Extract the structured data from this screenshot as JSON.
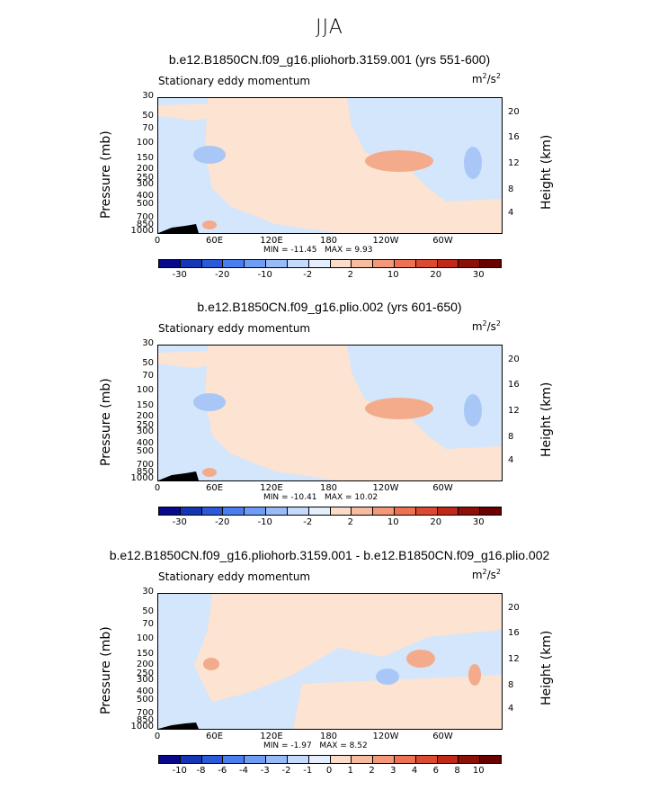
{
  "main_title": "JJA",
  "chart_data": [
    {
      "type": "heatmap",
      "title": "b.e12.B1850CN.f09_g16.pliohorb.3159.001 (yrs 551-600)",
      "variable_label": "Stationary eddy momentum",
      "units_base": "m",
      "units_exp1": "2",
      "units_mid": "/s",
      "units_exp2": "2",
      "ylabel": "Pressure (mb)",
      "ylabel_right": "Height (km)",
      "pressure_ticks": [
        "30",
        "50",
        "70",
        "100",
        "150",
        "200",
        "250",
        "300",
        "400",
        "500",
        "700",
        "850",
        "1000"
      ],
      "height_ticks": [
        "20",
        "16",
        "12",
        "8",
        "4"
      ],
      "x_ticks": [
        "0",
        "60E",
        "120E",
        "180",
        "120W",
        "60W"
      ],
      "min_label": "MIN = ",
      "min_value": "-11.45",
      "max_label": "MAX = ",
      "max_value": "9.93",
      "colorbar_ticks": [
        "-30",
        "-20",
        "-10",
        "-2",
        "2",
        "10",
        "20",
        "30"
      ]
    },
    {
      "type": "heatmap",
      "title": "b.e12.B1850CN.f09_g16.plio.002 (yrs 601-650)",
      "variable_label": "Stationary eddy momentum",
      "units_base": "m",
      "units_exp1": "2",
      "units_mid": "/s",
      "units_exp2": "2",
      "ylabel": "Pressure (mb)",
      "ylabel_right": "Height (km)",
      "pressure_ticks": [
        "30",
        "50",
        "70",
        "100",
        "150",
        "200",
        "250",
        "300",
        "400",
        "500",
        "700",
        "850",
        "1000"
      ],
      "height_ticks": [
        "20",
        "16",
        "12",
        "8",
        "4"
      ],
      "x_ticks": [
        "0",
        "60E",
        "120E",
        "180",
        "120W",
        "60W"
      ],
      "min_label": "MIN = ",
      "min_value": "-10.41",
      "max_label": "MAX = ",
      "max_value": "10.02",
      "colorbar_ticks": [
        "-30",
        "-20",
        "-10",
        "-2",
        "2",
        "10",
        "20",
        "30"
      ]
    },
    {
      "type": "heatmap",
      "title": "b.e12.B1850CN.f09_g16.pliohorb.3159.001 - b.e12.B1850CN.f09_g16.plio.002",
      "variable_label": "Stationary eddy momentum",
      "units_base": "m",
      "units_exp1": "2",
      "units_mid": "/s",
      "units_exp2": "2",
      "ylabel": "Pressure (mb)",
      "ylabel_right": "Height (km)",
      "pressure_ticks": [
        "30",
        "50",
        "70",
        "100",
        "150",
        "200",
        "250",
        "300",
        "400",
        "500",
        "700",
        "850",
        "1000"
      ],
      "height_ticks": [
        "20",
        "16",
        "12",
        "8",
        "4"
      ],
      "x_ticks": [
        "0",
        "60E",
        "120E",
        "180",
        "120W",
        "60W"
      ],
      "min_label": "MIN = ",
      "min_value": "-1.97",
      "max_label": "MAX = ",
      "max_value": "8.52",
      "colorbar_ticks": [
        "-10",
        "-8",
        "-6",
        "-4",
        "-3",
        "-2",
        "-1",
        "0",
        "1",
        "2",
        "3",
        "4",
        "6",
        "8",
        "10"
      ]
    }
  ],
  "colors": {
    "colorbar_abs": [
      "#08088c",
      "#1436b4",
      "#2a5ad8",
      "#4a7ef0",
      "#6f9cf5",
      "#98bbf8",
      "#c4d9fb",
      "#e4eefc",
      "#fbdcc8",
      "#f7bba0",
      "#f39878",
      "#ec7252",
      "#dc4a32",
      "#c02818",
      "#8c1008",
      "#6a0000"
    ],
    "colorbar_diff": [
      "#08088c",
      "#1436b4",
      "#2a5ad8",
      "#4a7ef0",
      "#6f9cf5",
      "#98bbf8",
      "#c4d9fb",
      "#e4eefc",
      "#fbdcc8",
      "#f7bba0",
      "#f39878",
      "#ec7252",
      "#dc4a32",
      "#c02818",
      "#8c1008",
      "#6a0000"
    ],
    "field_blue": "#d3e6fb",
    "field_peach": "#fde3d2",
    "field_mid_blue": "#a9c7f6",
    "field_orange": "#f4ab8c"
  }
}
